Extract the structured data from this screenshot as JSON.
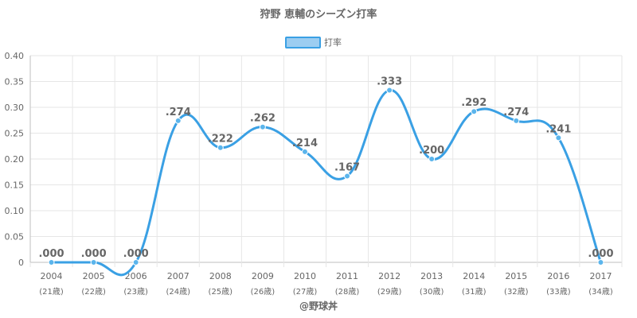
{
  "chart_data": {
    "type": "line",
    "title": "狩野 恵輔のシーズン打率",
    "legend": {
      "position": "top-center",
      "label": "打率"
    },
    "colors": {
      "line": "#3aa0e4",
      "point": "#5bb5ec",
      "legend_fill": "#9ccdf1",
      "grid": "#e6e6e6",
      "axis": "#bfbfbf"
    },
    "categories": [
      "2004",
      "2005",
      "2006",
      "2007",
      "2008",
      "2009",
      "2010",
      "2011",
      "2012",
      "2013",
      "2014",
      "2015",
      "2016",
      "2017"
    ],
    "category_sublabels": [
      "(21歳)",
      "(22歳)",
      "(23歳)",
      "(24歳)",
      "(25歳)",
      "(26歳)",
      "(27歳)",
      "(28歳)",
      "(29歳)",
      "(30歳)",
      "(31歳)",
      "(32歳)",
      "(33歳)",
      "(34歳)"
    ],
    "series": [
      {
        "name": "打率",
        "values": [
          0,
          0,
          0,
          0.274,
          0.222,
          0.262,
          0.214,
          0.167,
          0.333,
          0.2,
          0.292,
          0.274,
          0.241,
          0
        ],
        "labels": [
          ".000",
          ".000",
          ".000",
          ".274",
          ".222",
          ".262",
          ".214",
          ".167",
          ".333",
          ".200",
          ".292",
          ".274",
          ".241",
          ".000"
        ]
      }
    ],
    "ylim": [
      0,
      0.4
    ],
    "yticks": [
      0,
      0.05,
      0.1,
      0.15,
      0.2,
      0.25,
      0.3,
      0.35,
      0.4
    ],
    "ytick_labels": [
      "0",
      "0.05",
      "0.10",
      "0.15",
      "0.20",
      "0.25",
      "0.30",
      "0.35",
      "0.40"
    ],
    "grid": true,
    "xlabel": "",
    "ylabel": ""
  },
  "credit": "@野球丼"
}
